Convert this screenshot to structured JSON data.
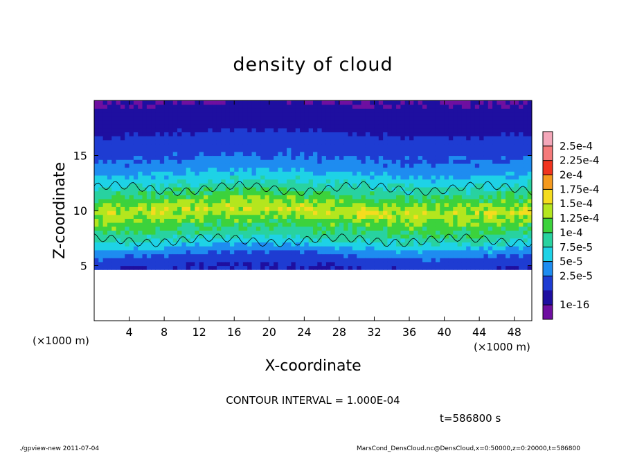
{
  "chart_data": {
    "type": "heatmap",
    "title": "density of cloud",
    "xlabel": "X-coordinate",
    "ylabel": "Z-coordinate",
    "x_unit": "(×1000 m)",
    "z_unit": "(×1000 m)",
    "xlim": [
      0,
      50
    ],
    "ylim": [
      0,
      20
    ],
    "x_ticks": [
      4,
      8,
      12,
      16,
      20,
      24,
      28,
      32,
      36,
      40,
      44,
      48
    ],
    "y_ticks": [
      5,
      10,
      15
    ],
    "contour_levels": [
      0.0001
    ],
    "colorbar": {
      "labels": [
        "2.5e-4",
        "2.25e-4",
        "2e-4",
        "1.75e-4",
        "1.5e-4",
        "1.25e-4",
        "1e-4",
        "7.5e-5",
        "5e-5",
        "2.5e-5",
        "1e-16"
      ],
      "colors": [
        "#f4a7b9",
        "#f57a7a",
        "#f0341e",
        "#f59a1e",
        "#f5dc1e",
        "#b4e61e",
        "#3cd23c",
        "#28d2a0",
        "#1ed2e6",
        "#1e8cf0",
        "#1e3cd2",
        "#1e0fa0",
        "#6e0fa0"
      ]
    },
    "field_description_rows": [
      {
        "z": 19.5,
        "value": 1e-16
      },
      {
        "z": 17.0,
        "value": 2.5e-05
      },
      {
        "z": 14.0,
        "value": 6e-05
      },
      {
        "z": 12.0,
        "value": 0.00011
      },
      {
        "z": 10.0,
        "value": 0.00017
      },
      {
        "z": 7.5,
        "value": 0.000105
      },
      {
        "z": 6.0,
        "value": 5e-05
      },
      {
        "z": 5.0,
        "value": 2.5e-05
      }
    ]
  },
  "info": {
    "contour_interval": "CONTOUR INTERVAL = 1.000E-04",
    "time": "t=586800 s"
  },
  "footer": {
    "left": "./gpview-new   2011-07-04",
    "right": "MarsCond_DensCloud.nc@DensCloud,x=0:50000,z=0:20000,t=586800"
  }
}
